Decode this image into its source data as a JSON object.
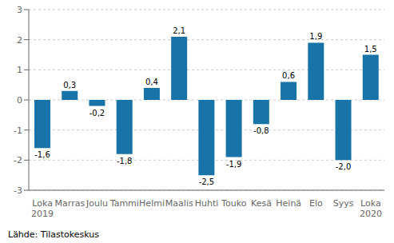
{
  "chart_data": {
    "type": "bar",
    "categories": [
      "Loka\n2019",
      "Marras",
      "Joulu",
      "Tammi",
      "Helmi",
      "Maalis",
      "Huhti",
      "Touko",
      "Kesä",
      "Heinä",
      "Elo",
      "Syys",
      "Loka\n2020"
    ],
    "values": [
      -1.6,
      0.3,
      -0.2,
      -1.8,
      0.4,
      2.1,
      -2.5,
      -1.9,
      -0.8,
      0.6,
      1.9,
      -2.0,
      1.5
    ],
    "value_labels": [
      "-1,6",
      "0,3",
      "-0,2",
      "-1,8",
      "0,4",
      "2,1",
      "-2,5",
      "-1,9",
      "-0,8",
      "0,6",
      "1,9",
      "-2,0",
      "1,5"
    ],
    "data_labels": true,
    "color": "#1873a8",
    "ylim": [
      -3,
      3
    ],
    "yticks": [
      -3,
      -2,
      -1,
      0,
      1,
      2,
      3
    ],
    "grid": true,
    "annotations": [
      "Lähde: Tilastokeskus"
    ]
  }
}
